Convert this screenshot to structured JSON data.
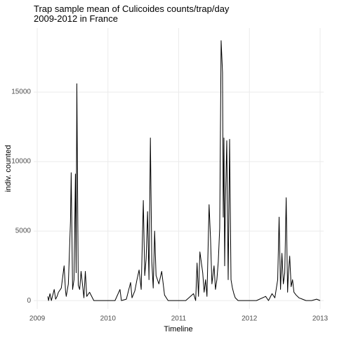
{
  "chart_data": {
    "type": "line",
    "title": "Trap sample mean of Culicoides counts/trap/day",
    "subtitle": "2009-2012 in France",
    "x_label": "Timeline",
    "y_label": "indiv. counted",
    "xlim": [
      2008.95,
      2013.05
    ],
    "xticks": [
      2009,
      2010,
      2011,
      2012,
      2013
    ],
    "ylim": [
      -600,
      19600
    ],
    "yticks": [
      0,
      5000,
      10000,
      15000
    ],
    "grid": true,
    "series": [
      {
        "name": "counts",
        "color": "#000000",
        "x": [
          2009.15,
          2009.16,
          2009.18,
          2009.2,
          2009.24,
          2009.26,
          2009.28,
          2009.3,
          2009.34,
          2009.38,
          2009.4,
          2009.41,
          2009.44,
          2009.47,
          2009.48,
          2009.5,
          2009.52,
          2009.54,
          2009.55,
          2009.56,
          2009.58,
          2009.6,
          2009.62,
          2009.66,
          2009.68,
          2009.7,
          2009.74,
          2009.8,
          2009.9,
          2010.0,
          2010.1,
          2010.17,
          2010.19,
          2010.26,
          2010.32,
          2010.34,
          2010.38,
          2010.41,
          2010.44,
          2010.47,
          2010.5,
          2010.52,
          2010.54,
          2010.56,
          2010.58,
          2010.6,
          2010.62,
          2010.64,
          2010.66,
          2010.68,
          2010.72,
          2010.76,
          2010.8,
          2010.85,
          2010.95,
          2011.1,
          2011.21,
          2011.24,
          2011.26,
          2011.28,
          2011.3,
          2011.34,
          2011.36,
          2011.38,
          2011.4,
          2011.43,
          2011.45,
          2011.47,
          2011.5,
          2011.52,
          2011.54,
          2011.56,
          2011.58,
          2011.6,
          2011.62,
          2011.63,
          2011.64,
          2011.65,
          2011.66,
          2011.68,
          2011.7,
          2011.72,
          2011.74,
          2011.76,
          2011.78,
          2011.8,
          2011.84,
          2011.9,
          2012.0,
          2012.1,
          2012.23,
          2012.27,
          2012.32,
          2012.36,
          2012.4,
          2012.42,
          2012.44,
          2012.46,
          2012.48,
          2012.5,
          2012.52,
          2012.54,
          2012.55,
          2012.57,
          2012.59,
          2012.61,
          2012.63,
          2012.66,
          2012.7,
          2012.75,
          2012.8,
          2012.88,
          2012.95,
          2013.0
        ],
        "values": [
          300,
          0,
          500,
          0,
          800,
          100,
          300,
          600,
          900,
          2500,
          700,
          300,
          1200,
          5700,
          9200,
          800,
          1500,
          9100,
          2000,
          15600,
          1100,
          800,
          2100,
          200,
          2100,
          300,
          600,
          0,
          0,
          0,
          0,
          800,
          0,
          100,
          1300,
          200,
          700,
          1500,
          2200,
          800,
          7200,
          1800,
          3000,
          6400,
          1500,
          11700,
          2800,
          900,
          5000,
          1800,
          1200,
          2100,
          400,
          0,
          0,
          0,
          500,
          0,
          2700,
          300,
          3500,
          2000,
          600,
          1500,
          300,
          6900,
          4500,
          1200,
          2500,
          800,
          1500,
          2800,
          5200,
          18700,
          16400,
          6000,
          11700,
          2500,
          6800,
          11500,
          1500,
          11600,
          1500,
          900,
          500,
          200,
          0,
          0,
          0,
          0,
          300,
          0,
          500,
          200,
          1500,
          6000,
          800,
          3400,
          1200,
          2000,
          7400,
          600,
          1800,
          3200,
          1000,
          1500,
          600,
          400,
          200,
          100,
          0,
          0,
          100,
          0
        ]
      }
    ]
  }
}
